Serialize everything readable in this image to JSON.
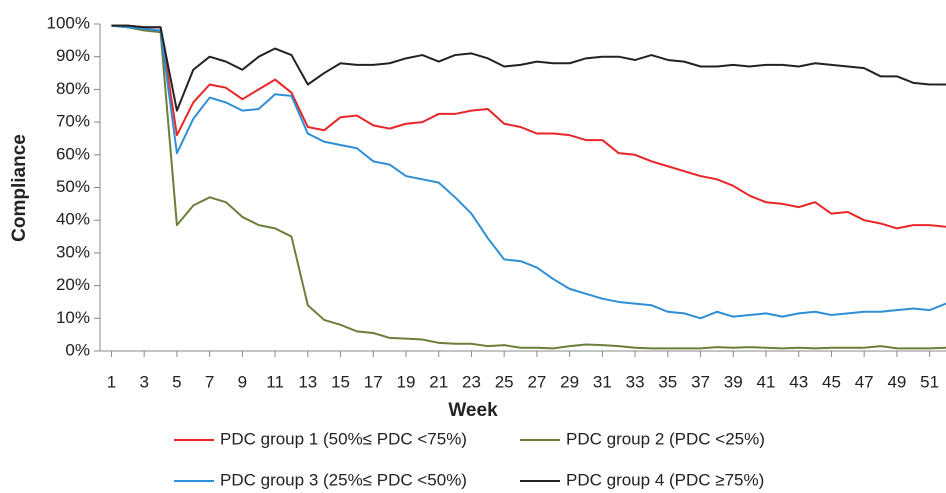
{
  "chart_data": {
    "type": "line",
    "x_label": "Week",
    "y_label": "Compliance",
    "x": [
      1,
      2,
      3,
      4,
      5,
      6,
      7,
      8,
      9,
      10,
      11,
      12,
      13,
      14,
      15,
      16,
      17,
      18,
      19,
      20,
      21,
      22,
      23,
      24,
      25,
      26,
      27,
      28,
      29,
      30,
      31,
      32,
      33,
      34,
      35,
      36,
      37,
      38,
      39,
      40,
      41,
      42,
      43,
      44,
      45,
      46,
      47,
      48,
      49,
      50,
      51,
      52
    ],
    "xlim": [
      0.3,
      52
    ],
    "xticks": [
      1,
      3,
      5,
      7,
      9,
      11,
      13,
      15,
      17,
      19,
      21,
      23,
      25,
      27,
      29,
      31,
      33,
      35,
      37,
      39,
      41,
      43,
      45,
      47,
      49,
      51
    ],
    "ylim": [
      0,
      100
    ],
    "yticks": [
      {
        "value": 0,
        "label": "0%"
      },
      {
        "value": 10,
        "label": "10%"
      },
      {
        "value": 20,
        "label": "20%"
      },
      {
        "value": 30,
        "label": "30%"
      },
      {
        "value": 40,
        "label": "40%"
      },
      {
        "value": 50,
        "label": "50%"
      },
      {
        "value": 60,
        "label": "60%"
      },
      {
        "value": 70,
        "label": "70%"
      },
      {
        "value": 80,
        "label": "80%"
      },
      {
        "value": 90,
        "label": "90%"
      },
      {
        "value": 100,
        "label": "100%"
      }
    ],
    "grid": false,
    "series": [
      {
        "name": "PDC group 1 (50%≤ PDC <75%)",
        "color": "#e8262a",
        "values": [
          99.5,
          99.5,
          99,
          99,
          66,
          76,
          81.5,
          80.5,
          77,
          80,
          83,
          79,
          68.5,
          67.5,
          71.5,
          72,
          69,
          68,
          69.5,
          70,
          72.5,
          72.5,
          73.5,
          74,
          69.5,
          68.5,
          66.5,
          66.5,
          66,
          64.5,
          64.5,
          60.5,
          60,
          58,
          56.5,
          55,
          53.5,
          52.5,
          50.5,
          47.5,
          45.5,
          45,
          44,
          45.5,
          42,
          42.5,
          40,
          39,
          37.5,
          38.5,
          38.5,
          38
        ]
      },
      {
        "name": "PDC group 2 (PDC <25%)",
        "color": "#6b7f3a",
        "values": [
          99.5,
          99,
          98,
          97.5,
          38.5,
          44.5,
          47,
          45.5,
          41,
          38.5,
          37.5,
          35,
          14,
          9.5,
          8,
          6,
          5.5,
          4,
          3.8,
          3.5,
          2.5,
          2.2,
          2.2,
          1.5,
          1.8,
          1,
          1,
          0.8,
          1.5,
          2,
          1.8,
          1.5,
          1,
          0.8,
          0.8,
          0.8,
          0.8,
          1.2,
          1,
          1.2,
          1,
          0.8,
          1,
          0.8,
          1,
          1,
          1,
          1.5,
          0.8,
          0.8,
          0.8,
          1
        ]
      },
      {
        "name": "PDC group 3 (25%≤ PDC <50%)",
        "color": "#2f8fd6",
        "values": [
          99.5,
          99,
          98.5,
          98,
          60.5,
          71,
          77.5,
          76,
          73.5,
          74,
          78.5,
          78,
          66.5,
          64,
          63,
          62,
          58,
          57,
          53.5,
          52.5,
          51.5,
          47,
          42,
          34.5,
          28,
          27.5,
          25.5,
          22,
          19,
          17.5,
          16,
          15,
          14.5,
          14,
          12,
          11.5,
          10,
          12,
          10.5,
          11,
          11.5,
          10.5,
          11.5,
          12,
          11,
          11.5,
          12,
          12,
          12.5,
          13,
          12.5,
          14.5
        ]
      },
      {
        "name": "PDC group 4 (PDC ≥75%)",
        "color": "#222222",
        "values": [
          99.5,
          99.5,
          99,
          99,
          73.5,
          86,
          90,
          88.5,
          86,
          90,
          92.5,
          90.5,
          81.5,
          85,
          88,
          87.5,
          87.5,
          88,
          89.5,
          90.5,
          88.5,
          90.5,
          91,
          89.5,
          87,
          87.5,
          88.5,
          88,
          88,
          89.5,
          90,
          90,
          89,
          90.5,
          89,
          88.5,
          87,
          87,
          87.5,
          87,
          87.5,
          87.5,
          87,
          88,
          87.5,
          87,
          86.5,
          84,
          84,
          82,
          81.5,
          81.5
        ]
      }
    ]
  }
}
